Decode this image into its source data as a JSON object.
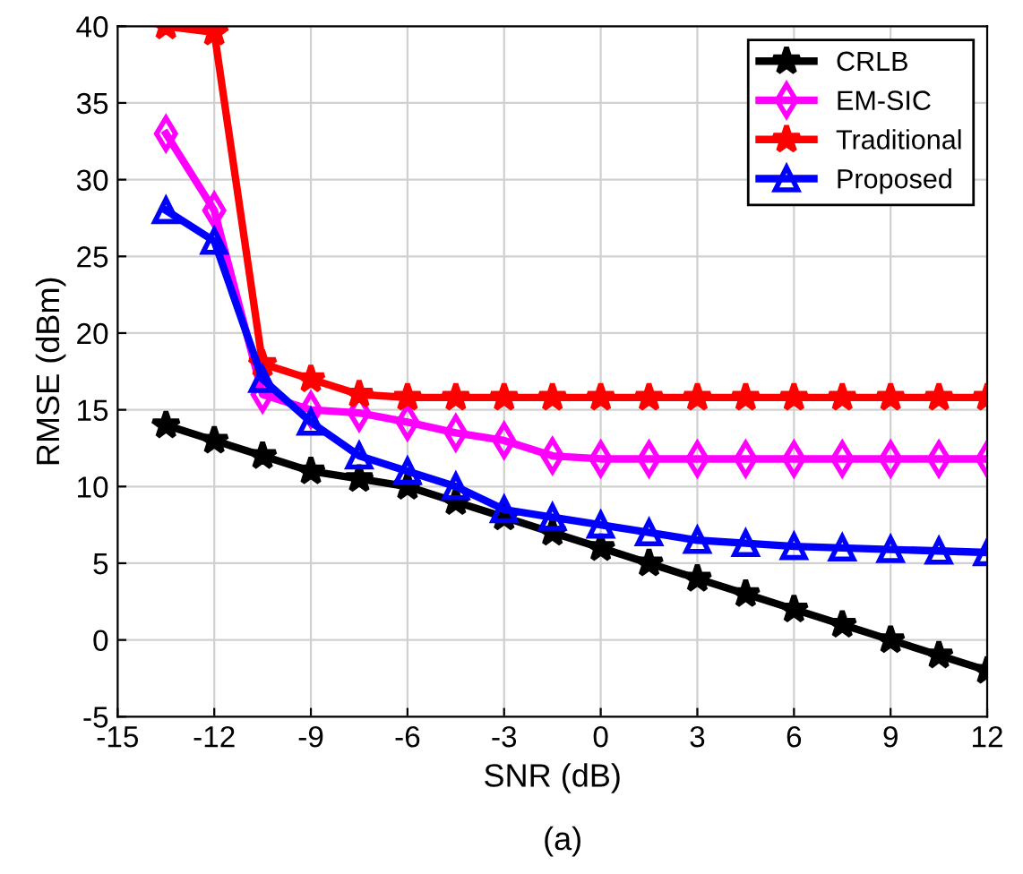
{
  "chart_data": {
    "type": "line",
    "xlabel": "SNR (dB)",
    "ylabel": "RMSE (dBm)",
    "x": [
      -13.5,
      -12,
      -10.5,
      -9,
      -7.5,
      -6,
      -4.5,
      -3,
      -1.5,
      0,
      1.5,
      3,
      4.5,
      6,
      7.5,
      9,
      10.5,
      12
    ],
    "series": [
      {
        "name": "CRLB",
        "color": "#000000",
        "marker": "star",
        "values": [
          14,
          13,
          12,
          11,
          10.5,
          10,
          9,
          8,
          7,
          6,
          5,
          4,
          3,
          2,
          1,
          0,
          -1,
          -2
        ]
      },
      {
        "name": "EM-SIC",
        "color": "#ff00ff",
        "marker": "diamond",
        "values": [
          33,
          28,
          16,
          15,
          14.8,
          14.2,
          13.5,
          13,
          12,
          11.8,
          11.8,
          11.8,
          11.8,
          11.8,
          11.8,
          11.8,
          11.8,
          11.8
        ]
      },
      {
        "name": "Traditional",
        "color": "#ff0000",
        "marker": "star",
        "values": [
          40,
          39.6,
          18,
          17,
          16,
          15.8,
          15.8,
          15.8,
          15.8,
          15.8,
          15.8,
          15.8,
          15.8,
          15.8,
          15.8,
          15.8,
          15.8,
          15.8
        ]
      },
      {
        "name": "Proposed",
        "color": "#0000ff",
        "marker": "triangle",
        "values": [
          28,
          26,
          17,
          14.2,
          12,
          11,
          10,
          8.5,
          8,
          7.5,
          7,
          6.5,
          6.3,
          6.1,
          6,
          5.9,
          5.8,
          5.7
        ]
      }
    ],
    "xlim": [
      -15,
      12
    ],
    "xticks": [
      -15,
      -12,
      -9,
      -6,
      -3,
      0,
      3,
      6,
      9,
      12
    ],
    "ylim": [
      -5,
      40
    ],
    "yticks": [
      -5,
      0,
      5,
      10,
      15,
      20,
      25,
      30,
      35,
      40
    ],
    "grid": true,
    "legend": "top right",
    "line_style": "solid",
    "annotations": [
      "(a)"
    ]
  }
}
